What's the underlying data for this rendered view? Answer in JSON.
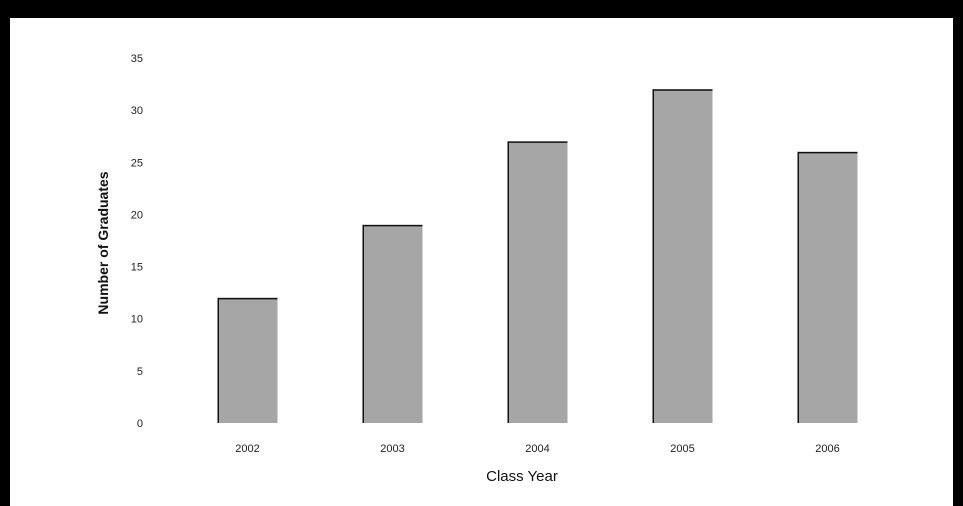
{
  "chart_data": {
    "type": "bar",
    "title": "",
    "xlabel": "Class Year",
    "ylabel": "Number of Graduates",
    "categories": [
      "2002",
      "2003",
      "2004",
      "2005",
      "2006"
    ],
    "values": [
      12,
      19,
      27,
      32,
      26
    ],
    "ylim": [
      0,
      35
    ],
    "yticks": [
      "0",
      "5",
      "10",
      "15",
      "20",
      "25",
      "30",
      "35"
    ],
    "grid": false,
    "legend": "none",
    "bar_color": "#a6a6a6",
    "bar_edge_color": "#111111"
  }
}
